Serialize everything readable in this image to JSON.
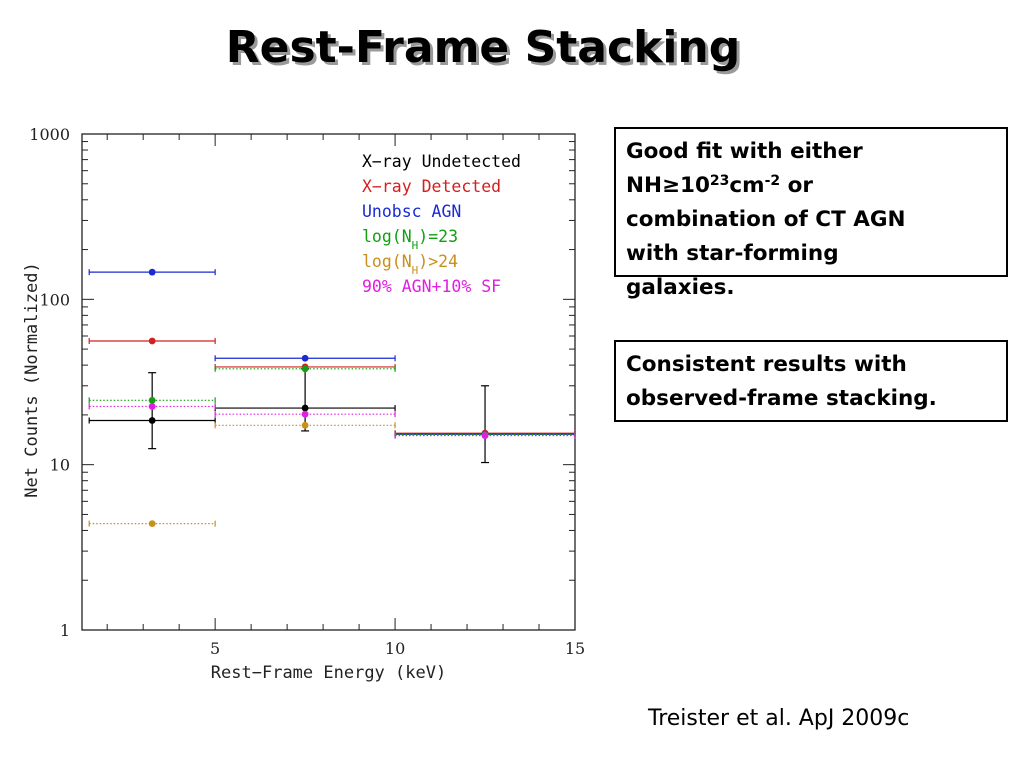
{
  "slide": {
    "title": "Rest-Frame Stacking",
    "box1": {
      "line1": "Good fit with either",
      "nh_prefix": "NH≥10",
      "nh_exp": "23",
      "nh_unit": "cm",
      "nh_unit_exp": "-2",
      "nh_suffix": " or",
      "line3": "combination of CT AGN",
      "line4": "with star-forming",
      "line5": "galaxies."
    },
    "box2": {
      "line1": "Consistent results with",
      "line2": "observed-frame stacking."
    },
    "citation": "Treister et al. ApJ 2009c"
  },
  "chart_data": {
    "type": "scatter",
    "xlabel": "Rest−Frame Energy (keV)",
    "ylabel": "Net Counts (Normalized)",
    "xlim": [
      1.3,
      15
    ],
    "ylim": [
      1,
      1000
    ],
    "yscale": "log",
    "xticks": [
      5,
      10,
      15
    ],
    "xtick_labels": [
      "5",
      "10",
      "15"
    ],
    "yticks": [
      1,
      10,
      100,
      1000
    ],
    "ytick_labels": [
      "1",
      "10",
      "100",
      "1000"
    ],
    "legend_position": "top-right",
    "series": [
      {
        "name": "X−ray Undetected",
        "color": "#000000",
        "line": "solid",
        "points": [
          {
            "x": 3.25,
            "y": 18.5,
            "xlo": 1.5,
            "xhi": 5,
            "ylo": 12.5,
            "yhi": 36
          },
          {
            "x": 7.5,
            "y": 22,
            "xlo": 5,
            "xhi": 10,
            "ylo": 16,
            "yhi": 38
          },
          {
            "x": 12.5,
            "y": 15.3,
            "xlo": 10,
            "xhi": 15,
            "ylo": 10.3,
            "yhi": 30
          }
        ]
      },
      {
        "name": "X−ray Detected",
        "color": "#d42020",
        "line": "solid",
        "points": [
          {
            "x": 3.25,
            "y": 56,
            "xlo": 1.5,
            "xhi": 5
          },
          {
            "x": 7.5,
            "y": 39,
            "xlo": 5,
            "xhi": 10
          },
          {
            "x": 12.5,
            "y": 15.5,
            "xlo": 10,
            "xhi": 15
          }
        ]
      },
      {
        "name": "Unobsc AGN",
        "color": "#1a2ad4",
        "line": "solid",
        "points": [
          {
            "x": 3.25,
            "y": 146,
            "xlo": 1.5,
            "xhi": 5
          },
          {
            "x": 7.5,
            "y": 44,
            "xlo": 5,
            "xhi": 10
          },
          {
            "x": 12.5,
            "y": 15.3,
            "xlo": 10,
            "xhi": 15
          }
        ]
      },
      {
        "name": "log(N_H)=23",
        "color": "#12a012",
        "line": "dotted",
        "points": [
          {
            "x": 3.25,
            "y": 24.5,
            "xlo": 1.5,
            "xhi": 5
          },
          {
            "x": 7.5,
            "y": 38,
            "xlo": 5,
            "xhi": 10
          },
          {
            "x": 12.5,
            "y": 15.2,
            "xlo": 10,
            "xhi": 15
          }
        ]
      },
      {
        "name": "log(N_H)>24",
        "color": "#c8901c",
        "line": "dotted",
        "points": [
          {
            "x": 3.25,
            "y": 4.4,
            "xlo": 1.5,
            "xhi": 5
          },
          {
            "x": 7.5,
            "y": 17.3,
            "xlo": 5,
            "xhi": 10
          },
          {
            "x": 12.5,
            "y": 15,
            "xlo": 10,
            "xhi": 15
          }
        ]
      },
      {
        "name": "90% AGN+10% SF",
        "color": "#e020e0",
        "line": "dotted",
        "points": [
          {
            "x": 3.25,
            "y": 22.5,
            "xlo": 1.5,
            "xhi": 5
          },
          {
            "x": 7.5,
            "y": 20.2,
            "xlo": 5,
            "xhi": 10
          },
          {
            "x": 12.5,
            "y": 15,
            "xlo": 10,
            "xhi": 15
          }
        ]
      }
    ]
  }
}
